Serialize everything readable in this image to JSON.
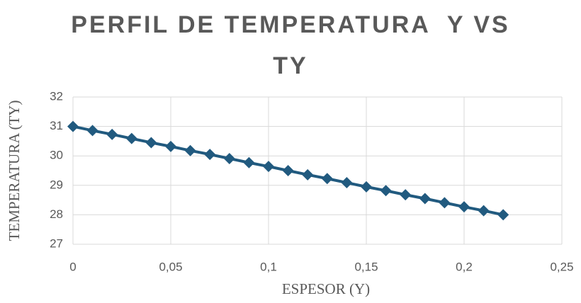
{
  "chart_data": {
    "type": "line",
    "title": "PERFIL DE TEMPERATURA  Y VS TY",
    "x_label": "ESPESOR (Y)",
    "y_label": "TEMPERATURA (TY)",
    "x": [
      0,
      0.01,
      0.02,
      0.03,
      0.04,
      0.05,
      0.06,
      0.07,
      0.08,
      0.09,
      0.1,
      0.11,
      0.12,
      0.13,
      0.14,
      0.15,
      0.16,
      0.17,
      0.18,
      0.19,
      0.2,
      0.21,
      0.22
    ],
    "values": [
      31,
      30.86,
      30.73,
      30.59,
      30.45,
      30.32,
      30.18,
      30.05,
      29.91,
      29.77,
      29.64,
      29.5,
      29.36,
      29.23,
      29.09,
      28.95,
      28.82,
      28.68,
      28.55,
      28.41,
      28.27,
      28.14,
      28
    ],
    "color": "#215a7f",
    "marker": "diamond",
    "xlim": [
      0,
      0.25
    ],
    "xticks": [
      0,
      {
        "value": 0.05,
        "label": "0,05"
      },
      {
        "value": 0.1,
        "label": "0,1"
      },
      {
        "value": 0.15,
        "label": "0,15"
      },
      {
        "value": 0.2,
        "label": "0,2"
      },
      {
        "value": 0.25,
        "label": "0,25"
      }
    ],
    "ylim": [
      27,
      32
    ],
    "yticks": [
      27,
      28,
      29,
      30,
      31,
      32
    ],
    "grid": true
  }
}
